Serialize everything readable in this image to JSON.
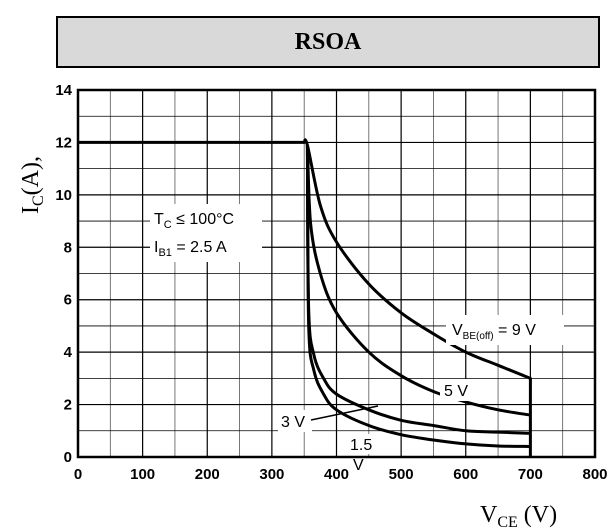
{
  "title": "RSOA",
  "chart_data": {
    "type": "line",
    "ylabel": {
      "main": "I",
      "sub": "C",
      "tail": "(A),"
    },
    "xlabel": {
      "main": "V",
      "sub": "CE",
      "tail": " (V)"
    },
    "xlim": [
      0,
      800
    ],
    "ylim": [
      0,
      14
    ],
    "xticks": [
      0,
      100,
      200,
      300,
      400,
      500,
      600,
      700,
      800
    ],
    "yticks": [
      0,
      2,
      4,
      6,
      8,
      10,
      12,
      14
    ],
    "xtick_labels": [
      "0",
      "100",
      "200",
      "300",
      "400",
      "500",
      "600",
      "700",
      "800"
    ],
    "ytick_labels": [
      "0",
      "2",
      "4",
      "6",
      "8",
      "10",
      "12",
      "14"
    ],
    "grid": true,
    "conditions": {
      "tc": {
        "main": "T",
        "sub": "C",
        "tail": " ≤ 100°C"
      },
      "ib": {
        "main": "I",
        "sub": "B1",
        "tail": " = 2.5 A"
      }
    },
    "series": [
      {
        "name": "V_BE(off) = 9 V",
        "label": {
          "main": "V",
          "sub": "BE(off)",
          "tail": " = 9 V"
        },
        "x": [
          0,
          350,
          355,
          375,
          400,
          450,
          500,
          550,
          600,
          650,
          700,
          700
        ],
        "y": [
          12,
          12,
          11.9,
          9.6,
          8.2,
          6.6,
          5.5,
          4.7,
          4.0,
          3.5,
          3.0,
          0
        ]
      },
      {
        "name": "5 V",
        "label": {
          "main": "5 V",
          "sub": "",
          "tail": ""
        },
        "x": [
          355,
          360,
          375,
          400,
          450,
          500,
          550,
          600,
          650,
          700
        ],
        "y": [
          11.9,
          8.9,
          7.0,
          5.5,
          4.0,
          3.1,
          2.5,
          2.1,
          1.8,
          1.6
        ]
      },
      {
        "name": "3 V",
        "label": {
          "main": "3 V",
          "sub": "",
          "tail": ""
        },
        "x": [
          355,
          357,
          365,
          380,
          400,
          450,
          500,
          550,
          600,
          650,
          700
        ],
        "y": [
          11.9,
          5.6,
          3.9,
          3.0,
          2.4,
          1.8,
          1.4,
          1.2,
          1.0,
          0.95,
          0.9
        ]
      },
      {
        "name": "1.5 V",
        "label": {
          "main": "1.5",
          "sub": "",
          "tail": "V"
        },
        "x": [
          355,
          357,
          365,
          380,
          400,
          450,
          500,
          550,
          600,
          650,
          700
        ],
        "y": [
          11.9,
          5.0,
          3.3,
          2.4,
          1.8,
          1.2,
          0.85,
          0.65,
          0.5,
          0.42,
          0.4
        ]
      }
    ]
  }
}
